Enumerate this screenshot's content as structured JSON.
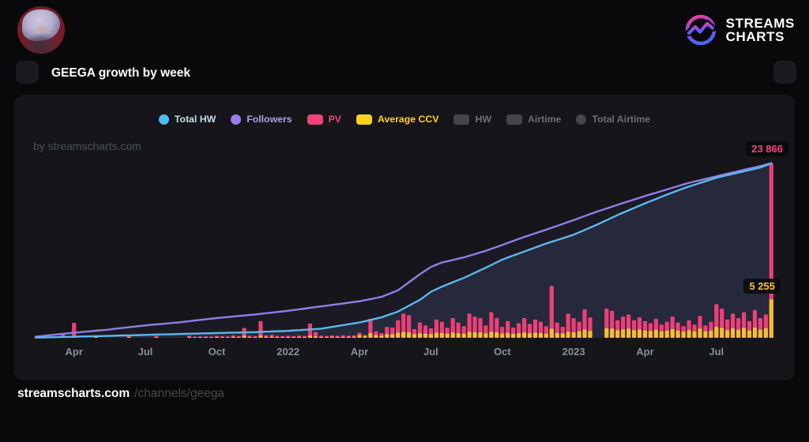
{
  "brand": {
    "name_line1": "STREAMS",
    "name_line2": "CHARTS"
  },
  "page_title": "GEEGA growth by week",
  "watermark": "by streamscharts.com",
  "footer": {
    "site": "streamscharts.com",
    "path": "/channels/geega"
  },
  "value_labels": {
    "pv": {
      "text": "23 866",
      "color": "#f4437c"
    },
    "ccv": {
      "text": "5 255",
      "color": "#f2c43e"
    }
  },
  "legend": {
    "items": [
      {
        "label": "Total HW",
        "slug": "total-hw",
        "shape": "circle",
        "color": "#4fb9f2",
        "label_color": "#c6dcee",
        "active": true
      },
      {
        "label": "Followers",
        "slug": "followers",
        "shape": "circle",
        "color": "#9b7cf0",
        "label_color": "#af9fe8",
        "active": true
      },
      {
        "label": "PV",
        "slug": "pv",
        "shape": "rect",
        "color": "#f4437c",
        "label_color": "#f4437c",
        "active": true
      },
      {
        "label": "Average CCV",
        "slug": "average-ccv",
        "shape": "rect",
        "color": "#ffd21e",
        "label_color": "#ffd21e",
        "active": true
      },
      {
        "label": "HW",
        "slug": "hw",
        "shape": "rect",
        "color": "#55565c",
        "label_color": "#6d6f75",
        "active": false
      },
      {
        "label": "Airtime",
        "slug": "airtime",
        "shape": "rect",
        "color": "#55565c",
        "label_color": "#6d6f75",
        "active": false
      },
      {
        "label": "Total Airtime",
        "slug": "total-airtime",
        "shape": "circle",
        "color": "#55565c",
        "label_color": "#6d6f75",
        "active": false
      }
    ]
  },
  "chart_data": {
    "type": "mixed",
    "x_unit": "week",
    "note": "weekly points, ~Feb 2021 through Sep 2023; lines are cumulative, bars are weekly",
    "ylim": [
      0,
      26000
    ],
    "grid": false,
    "legend_position": "top-center",
    "tick_weeks": [
      7,
      20,
      33,
      46,
      59,
      72,
      85,
      98,
      111,
      124
    ],
    "tick_labels": [
      "Apr",
      "Jul",
      "Oct",
      "2022",
      "Apr",
      "Jul",
      "Oct",
      "2023",
      "Apr",
      "Jul"
    ],
    "final_annotations": [
      {
        "series": "PV",
        "value": 23866,
        "text": "23 866"
      },
      {
        "series": "Average CCV",
        "value": 5255,
        "text": "5 255"
      }
    ],
    "series": [
      {
        "name": "Followers",
        "type": "line",
        "color": "#907ee6",
        "values": [
          150,
          230,
          310,
          390,
          470,
          550,
          630,
          700,
          770,
          840,
          900,
          970,
          1040,
          1100,
          1190,
          1280,
          1360,
          1450,
          1530,
          1620,
          1700,
          1770,
          1840,
          1900,
          1970,
          2040,
          2100,
          2190,
          2280,
          2360,
          2450,
          2530,
          2620,
          2700,
          2770,
          2840,
          2920,
          2990,
          3060,
          3130,
          3200,
          3280,
          3370,
          3450,
          3530,
          3620,
          3700,
          3800,
          3900,
          4000,
          4100,
          4200,
          4300,
          4400,
          4500,
          4600,
          4700,
          4800,
          4900,
          5000,
          5150,
          5300,
          5450,
          5600,
          5900,
          6200,
          6500,
          7050,
          7600,
          8150,
          8700,
          9200,
          9700,
          10000,
          10300,
          10480,
          10650,
          10830,
          11000,
          11230,
          11450,
          11680,
          11900,
          12170,
          12430,
          12700,
          12980,
          13250,
          13530,
          13800,
          14050,
          14300,
          14550,
          14800,
          15060,
          15320,
          15580,
          15840,
          16100,
          16380,
          16650,
          16930,
          17200,
          17450,
          17700,
          17950,
          18200,
          18440,
          18680,
          18920,
          19160,
          19400,
          19630,
          19850,
          20080,
          20300,
          20530,
          20750,
          20980,
          21200,
          21380,
          21560,
          21740,
          21920,
          22100,
          22280,
          22450,
          22630,
          22800,
          22980,
          23150,
          23330,
          23500,
          23700,
          23900
        ]
      },
      {
        "name": "Total HW",
        "type": "line",
        "color": "#5cb7ec",
        "values": [
          30,
          45,
          60,
          80,
          95,
          115,
          130,
          150,
          170,
          190,
          205,
          225,
          240,
          260,
          280,
          300,
          320,
          340,
          360,
          380,
          400,
          420,
          440,
          460,
          480,
          500,
          520,
          540,
          560,
          575,
          595,
          615,
          630,
          650,
          670,
          690,
          705,
          725,
          740,
          760,
          780,
          810,
          840,
          865,
          895,
          920,
          950,
          1000,
          1050,
          1100,
          1150,
          1200,
          1250,
          1370,
          1490,
          1610,
          1740,
          1860,
          1980,
          2100,
          2275,
          2450,
          2625,
          2800,
          3070,
          3330,
          3600,
          4000,
          4400,
          4800,
          5200,
          5750,
          6300,
          6650,
          7000,
          7300,
          7600,
          7900,
          8200,
          8550,
          8900,
          9250,
          9600,
          9970,
          10330,
          10700,
          10980,
          11250,
          11530,
          11800,
          12080,
          12350,
          12630,
          12900,
          13140,
          13380,
          13620,
          13860,
          14100,
          14430,
          14750,
          15080,
          15400,
          15750,
          16100,
          16450,
          16800,
          17120,
          17440,
          17760,
          18080,
          18400,
          18700,
          19000,
          19300,
          19600,
          19880,
          20150,
          20430,
          20700,
          20940,
          21180,
          21420,
          21660,
          21900,
          22080,
          22250,
          22430,
          22600,
          22780,
          22950,
          23130,
          23300,
          23580,
          23850
        ]
      },
      {
        "name": "PV",
        "type": "bar",
        "color": "#ee3f77",
        "values": [
          0,
          0,
          0,
          0,
          0,
          450,
          0,
          2050,
          0,
          0,
          0,
          280,
          0,
          0,
          0,
          0,
          0,
          240,
          0,
          0,
          0,
          0,
          260,
          0,
          0,
          0,
          0,
          0,
          300,
          150,
          180,
          200,
          170,
          260,
          210,
          190,
          320,
          240,
          1350,
          280,
          250,
          2300,
          350,
          420,
          260,
          230,
          280,
          250,
          300,
          270,
          1950,
          800,
          300,
          260,
          320,
          280,
          350,
          300,
          330,
          700,
          400,
          2600,
          900,
          650,
          1500,
          1400,
          2400,
          3300,
          3100,
          1200,
          2100,
          1700,
          1300,
          2500,
          2200,
          1400,
          2700,
          2100,
          1600,
          3300,
          2900,
          2700,
          1700,
          3500,
          2700,
          1500,
          2300,
          1400,
          2000,
          2700,
          1900,
          2500,
          2200,
          1600,
          7100,
          2100,
          1500,
          3300,
          2700,
          2200,
          3900,
          2800,
          0,
          0,
          4000,
          3700,
          2400,
          2900,
          3200,
          2400,
          2800,
          2300,
          2000,
          2600,
          1800,
          2200,
          2900,
          2100,
          1600,
          2400,
          1800,
          3000,
          1700,
          2200,
          4600,
          4000,
          2500,
          3300,
          2700,
          3500,
          2300,
          3800,
          2700,
          3200,
          23866
        ]
      },
      {
        "name": "Average CCV",
        "type": "bar",
        "color": "#f5bd2f",
        "values": [
          0,
          0,
          0,
          0,
          0,
          120,
          0,
          260,
          0,
          0,
          0,
          90,
          0,
          0,
          0,
          0,
          0,
          80,
          0,
          0,
          0,
          0,
          85,
          0,
          0,
          0,
          0,
          0,
          100,
          70,
          80,
          85,
          75,
          110,
          90,
          85,
          130,
          100,
          290,
          110,
          100,
          360,
          130,
          150,
          105,
          95,
          110,
          100,
          120,
          110,
          310,
          200,
          120,
          110,
          130,
          115,
          140,
          125,
          135,
          380,
          250,
          650,
          380,
          320,
          520,
          500,
          700,
          800,
          760,
          520,
          640,
          580,
          540,
          700,
          660,
          560,
          720,
          640,
          580,
          820,
          760,
          740,
          600,
          850,
          740,
          580,
          680,
          560,
          640,
          740,
          620,
          700,
          660,
          580,
          1250,
          680,
          600,
          840,
          760,
          900,
          1150,
          950,
          0,
          0,
          1300,
          1250,
          1050,
          1150,
          1250,
          1050,
          1150,
          1000,
          950,
          1100,
          900,
          1000,
          1200,
          1000,
          850,
          1050,
          900,
          1250,
          900,
          1000,
          1500,
          1350,
          1050,
          1300,
          1100,
          1350,
          1000,
          1400,
          1100,
          1300,
          5255
        ]
      }
    ]
  }
}
